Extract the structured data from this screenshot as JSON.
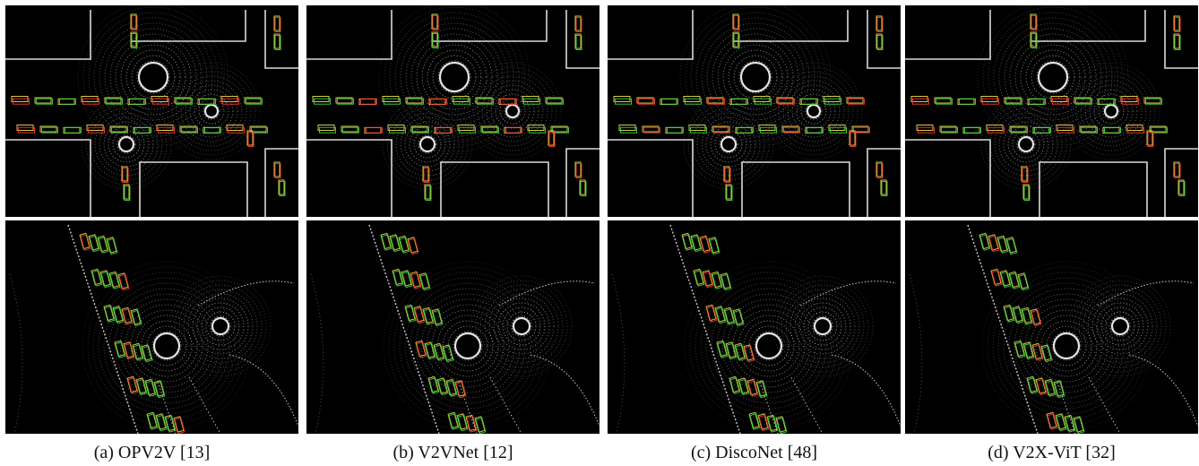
{
  "panels": [
    {
      "caption": "(a) OPV2V [13]"
    },
    {
      "caption": "(b) V2VNet [12]"
    },
    {
      "caption": "(c) DiscoNet [48]"
    },
    {
      "caption": "(d) V2X-ViT [32]"
    }
  ],
  "colors": {
    "ground_truth": "#35c83a",
    "prediction": "#e8322a",
    "overlap": "#d8c84a",
    "points": "#f2f2f2",
    "background": "#000000"
  }
}
